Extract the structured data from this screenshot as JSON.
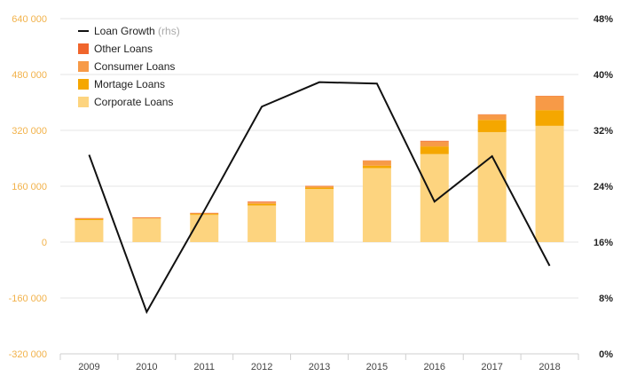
{
  "chart_data": {
    "type": "bar",
    "stacked": true,
    "categories": [
      "2009",
      "2010",
      "2011",
      "2012",
      "2013",
      "2015",
      "2016",
      "2017",
      "2018"
    ],
    "series": [
      {
        "name": "Corporate Loans",
        "color": "#fdd47f",
        "values": [
          63000,
          67000,
          78000,
          105000,
          152000,
          212000,
          252000,
          315000,
          333000
        ]
      },
      {
        "name": "Mortage Loans",
        "color": "#f5a700",
        "values": [
          3000,
          1000,
          3000,
          5000,
          4000,
          7000,
          22000,
          35000,
          45000
        ]
      },
      {
        "name": "Consumer Loans",
        "color": "#f79a47",
        "values": [
          2000,
          2000,
          2000,
          4000,
          4000,
          14000,
          14000,
          15000,
          40000
        ]
      },
      {
        "name": "Other Loans",
        "color": "#f0652c",
        "values": [
          1000,
          1000,
          1000,
          2000,
          1000,
          1000,
          2000,
          1000,
          1000
        ]
      }
    ],
    "line": {
      "name": "Loan Growth",
      "note": "(rhs)",
      "color": "#111111",
      "axis": "right",
      "values": [
        0.285,
        0.06,
        0.205,
        0.354,
        0.389,
        0.387,
        0.218,
        0.283,
        0.126
      ]
    },
    "y_left": {
      "min": -320000,
      "max": 640000,
      "ticks": [
        -320000,
        -160000,
        0,
        160000,
        320000,
        480000,
        640000
      ],
      "tick_labels": [
        "-320 000",
        "-160 000",
        "0",
        "160 000",
        "320 000",
        "480 000",
        "640 000"
      ],
      "label_color": "#f2b24a"
    },
    "y_right": {
      "min": 0,
      "max": 0.48,
      "ticks": [
        0,
        0.08,
        0.16,
        0.24,
        0.32,
        0.4,
        0.48
      ],
      "tick_labels": [
        "0%",
        "8%",
        "16%",
        "24%",
        "32%",
        "40%",
        "48%"
      ]
    },
    "grid": true,
    "legend_position": "top-left",
    "legend_order": [
      "Loan Growth",
      "Other Loans",
      "Consumer Loans",
      "Mortage Loans",
      "Corporate Loans"
    ]
  }
}
